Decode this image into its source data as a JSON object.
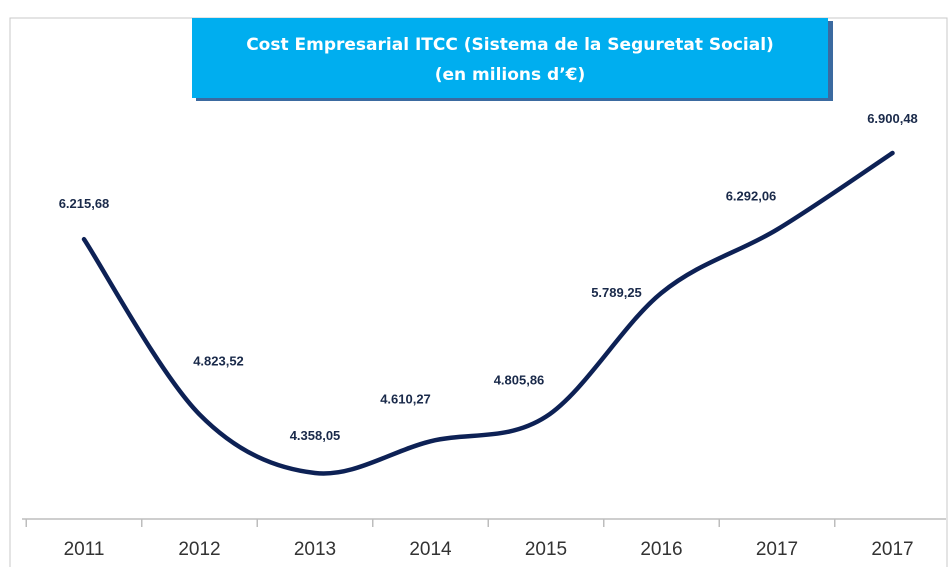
{
  "chart_data": {
    "type": "line",
    "title": "Cost Empresarial ITCC (Sistema de la Seguretat Social)",
    "subtitle": "(en milions d’€)",
    "categories": [
      "2011",
      "2012",
      "2013",
      "2014",
      "2015",
      "2016",
      "2017",
      "2017"
    ],
    "values": [
      6215.68,
      4823.52,
      4358.05,
      4610.27,
      4805.86,
      5789.25,
      6292.06,
      6900.48
    ],
    "value_labels": [
      "6.215,68",
      "4.823,52",
      "4.358,05",
      "4.610,27",
      "4.805,86",
      "5.789,25",
      "6.292,06",
      "6.900,48"
    ],
    "color": "#0d2155"
  }
}
